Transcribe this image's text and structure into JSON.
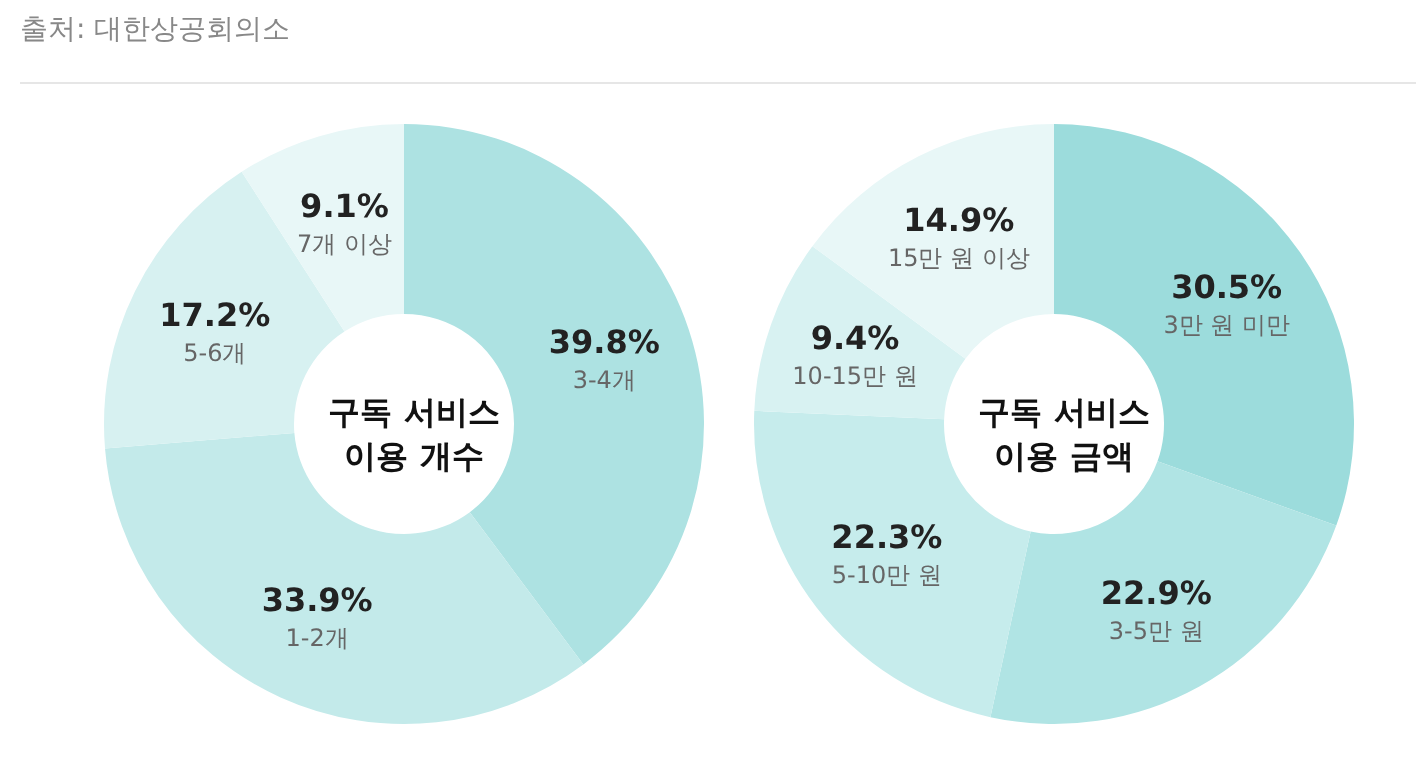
{
  "chart_data": [
    {
      "type": "donut",
      "title": "구독 서비스\n이용 개수",
      "annotations": [
        "출처: 대한상공회의소"
      ],
      "categories": [
        "3-4개",
        "1-2개",
        "5-6개",
        "7개 이상"
      ],
      "values": [
        39.8,
        33.9,
        17.2,
        9.1
      ],
      "colors": [
        "#ade2e2",
        "#c3eaea",
        "#d7f1f1",
        "#e8f7f7"
      ],
      "value_labels": [
        "39.8%",
        "33.9%",
        "17.2%",
        "9.1%"
      ]
    },
    {
      "type": "donut",
      "title": "구독 서비스\n이용 금액",
      "categories": [
        "3만 원 미만",
        "3-5만 원",
        "5-10만 원",
        "10-15만 원",
        "15만 원 이상"
      ],
      "values": [
        30.5,
        22.9,
        22.3,
        9.4,
        14.9
      ],
      "colors": [
        "#9cdcdc",
        "#b0e4e4",
        "#c6ecec",
        "#d8f2f2",
        "#e8f7f7"
      ],
      "value_labels": [
        "30.5%",
        "22.9%",
        "22.3%",
        "9.4%",
        "14.9%"
      ]
    }
  ]
}
